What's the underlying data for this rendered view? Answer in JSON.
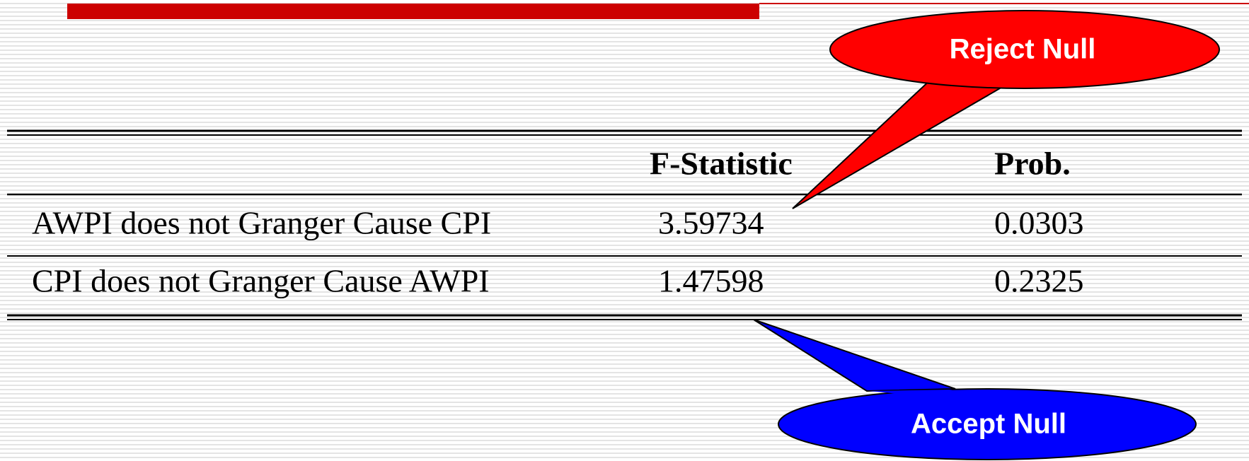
{
  "table": {
    "columns": [
      "F-Statistic",
      "Prob."
    ],
    "rows": [
      [
        "AWPI does not Granger Cause CPI",
        "3.59734",
        "0.0303"
      ],
      [
        "CPI does not Granger Cause AWPI",
        "1.47598",
        "0.2325"
      ]
    ]
  },
  "callouts": [
    "Reject Null",
    "Accept Null"
  ]
}
